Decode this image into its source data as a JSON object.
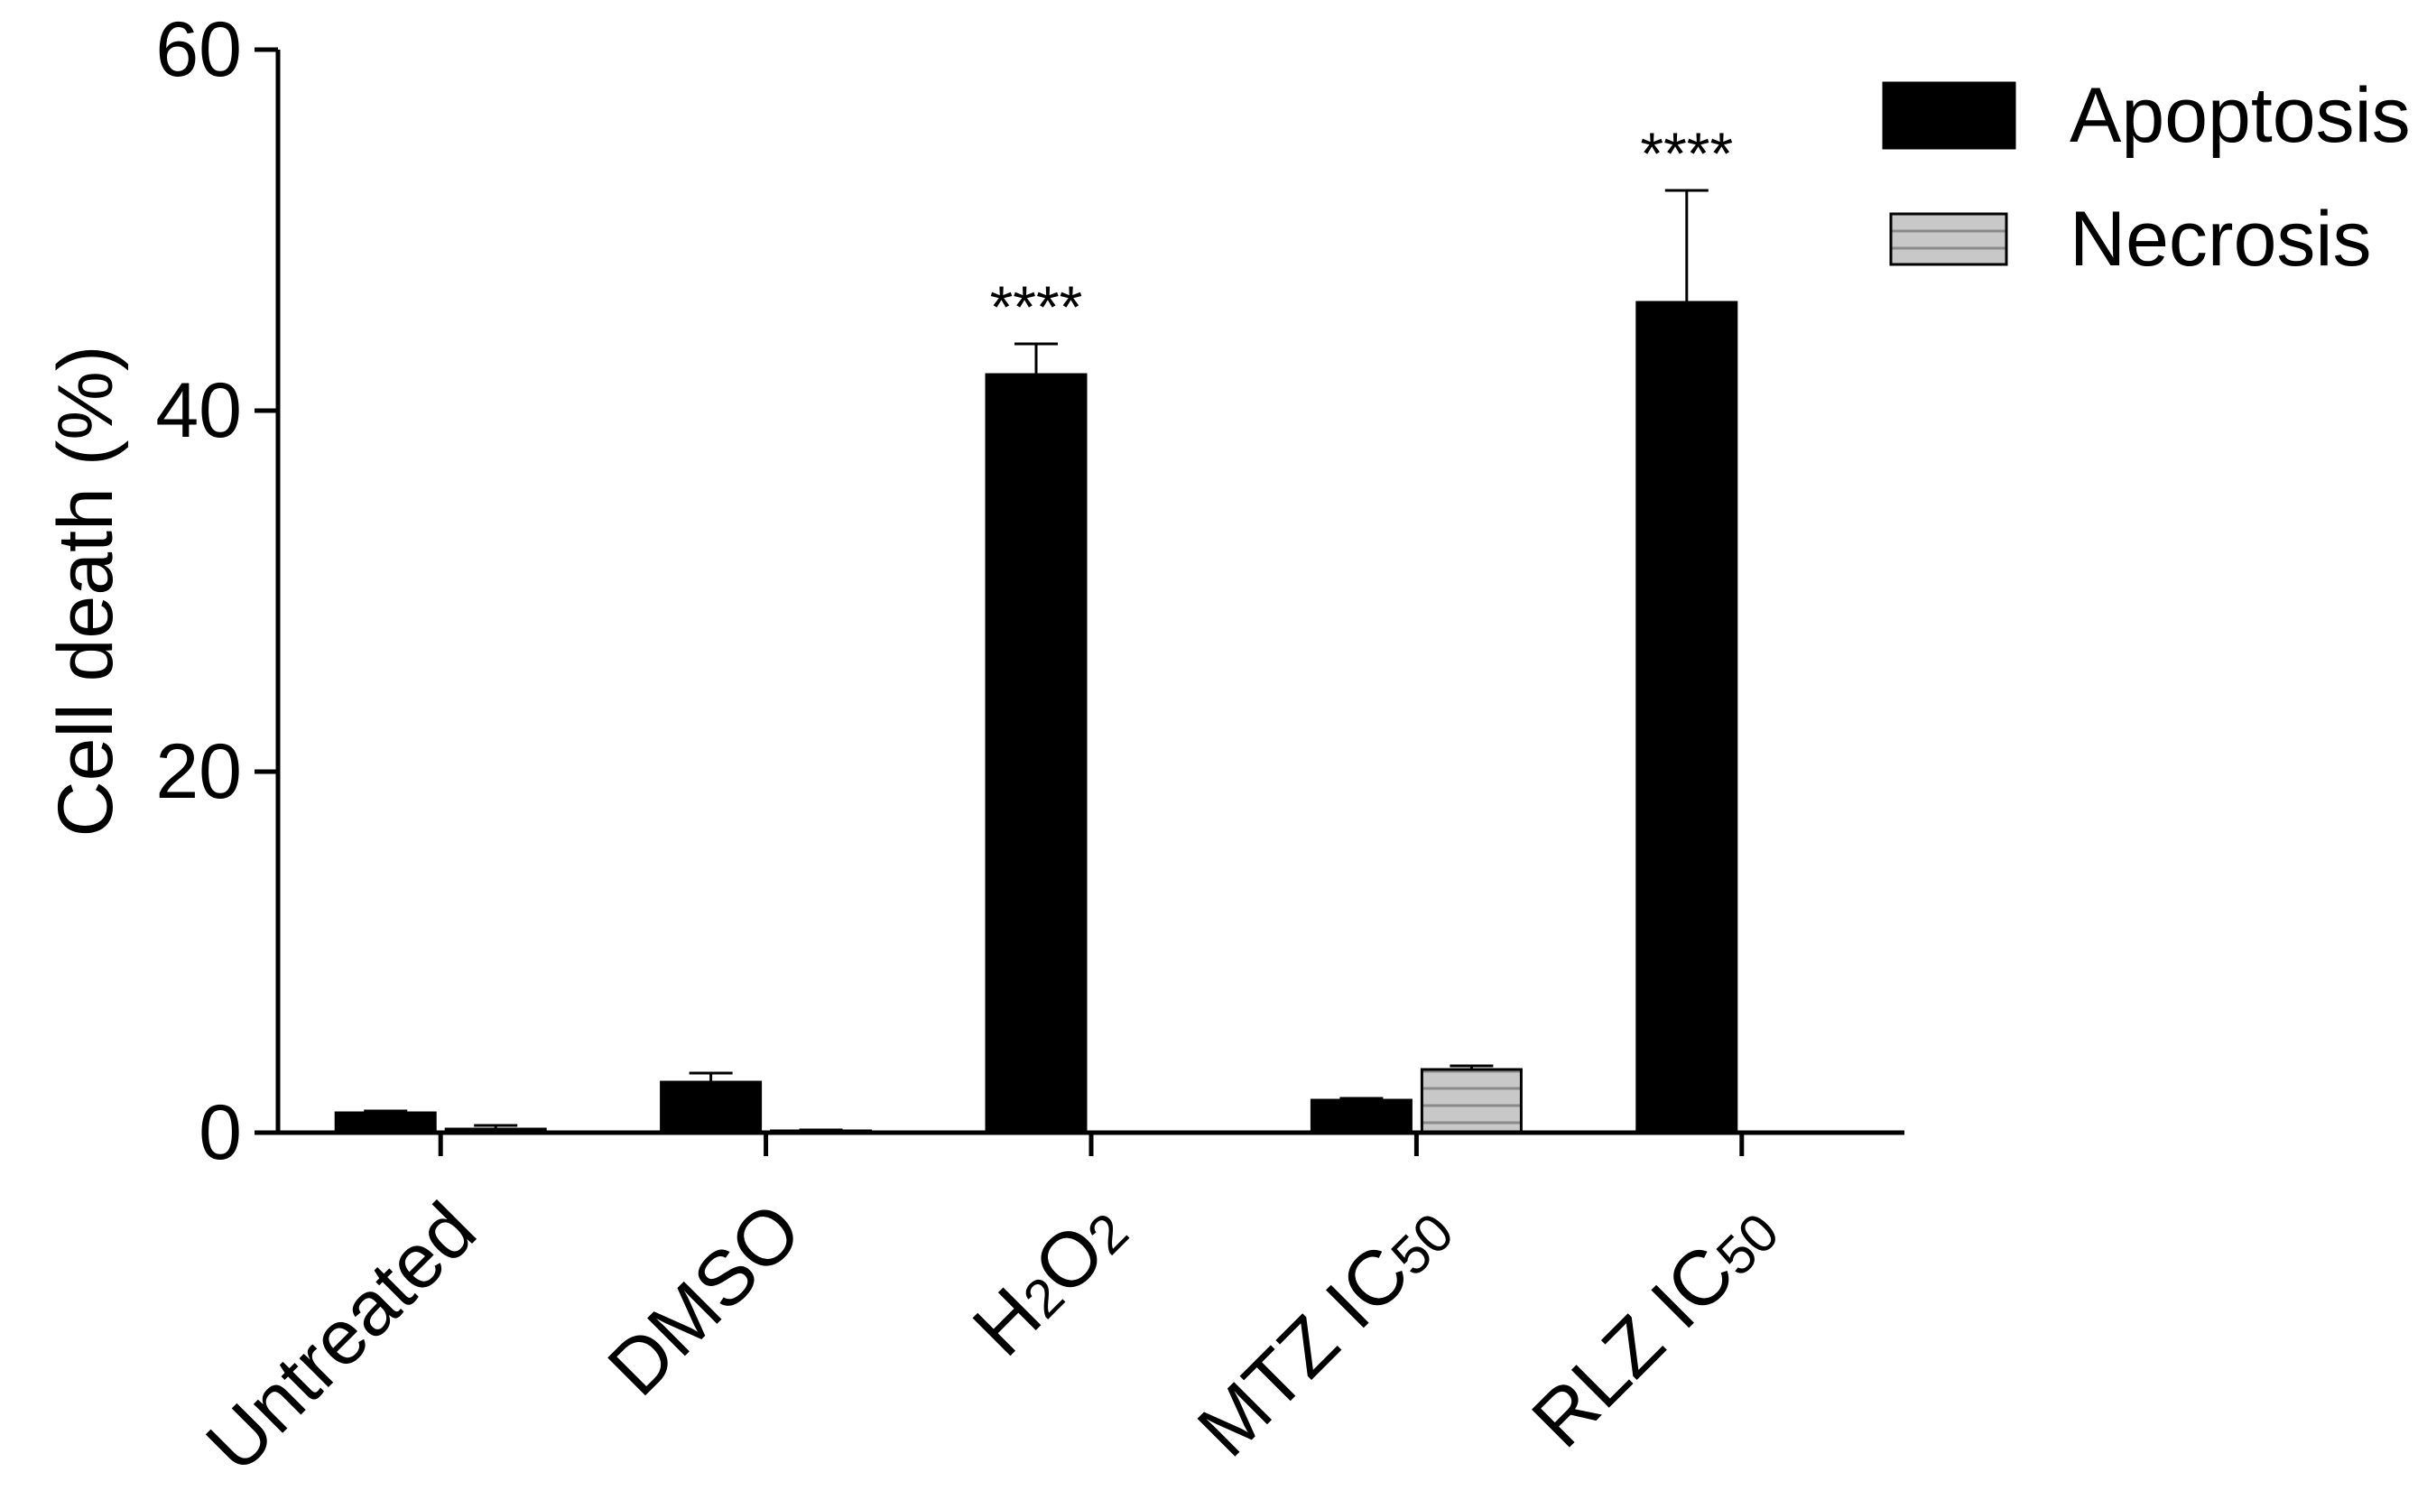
{
  "chart_data": {
    "type": "bar",
    "ylabel": "Cell death (%)",
    "xlabel": "",
    "ylim": [
      0,
      60
    ],
    "yticks": [
      "0",
      "20",
      "40",
      "60"
    ],
    "categories": [
      {
        "text": "Untreated"
      },
      {
        "text": "DMSO"
      },
      {
        "main": "H",
        "sub1": "2",
        "mid": "O",
        "sub2": "2",
        "label": "H2O2"
      },
      {
        "main": "MTZ IC",
        "sub1": "50",
        "label": "MTZ IC50"
      },
      {
        "main": "RLZ IC",
        "sub1": "50",
        "label": "RLZ IC50"
      }
    ],
    "series": [
      {
        "name": "Apoptosis",
        "values": [
          1.1,
          2.8,
          42.0,
          1.8,
          46.0
        ],
        "errors": [
          0.1,
          0.5,
          1.7,
          0.1,
          6.2
        ],
        "color": "#000000",
        "pattern": "solid"
      },
      {
        "name": "Necrosis",
        "values": [
          0.2,
          0.1,
          0,
          3.5,
          0
        ],
        "errors": [
          0.2,
          0.05,
          0,
          0.2,
          0
        ],
        "color": "#c8c8c8",
        "pattern": "horizontal-stripes"
      }
    ],
    "annotations": [
      {
        "category": "H2O2",
        "series": "Apoptosis",
        "text": "****"
      },
      {
        "category": "RLZ IC50",
        "series": "Apoptosis",
        "text": "****"
      }
    ],
    "legend": {
      "position": "top-right"
    },
    "grid": false
  }
}
